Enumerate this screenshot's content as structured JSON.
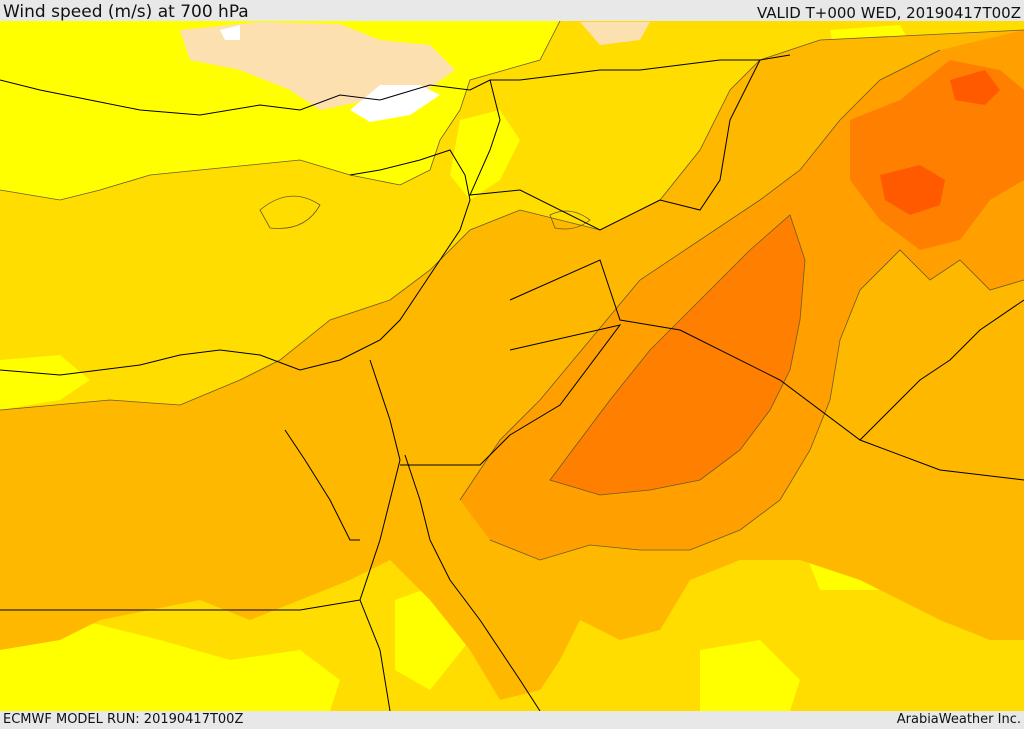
{
  "header": {
    "title": "Wind speed (m/s) at 700 hPa",
    "valid": "VALID T+000 WED, 20190417T00Z"
  },
  "footer": {
    "model_run": "ECMWF MODEL RUN: 20190417T00Z",
    "credit": "ArabiaWeather Inc."
  },
  "colors": {
    "band_0": "#ffffff",
    "band_1": "#fde0b0",
    "band_2": "#ffff00",
    "band_3": "#ffdd00",
    "band_4": "#ffb800",
    "band_5": "#ffa000",
    "band_6": "#ff7f00",
    "band_7": "#ff5a00",
    "contour_line": "#6b5a2a",
    "border_line": "#000000"
  }
}
